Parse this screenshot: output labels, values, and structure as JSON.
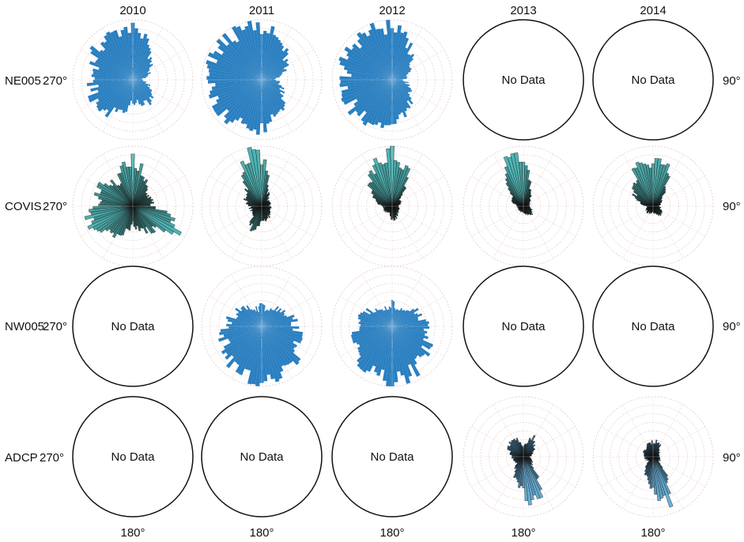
{
  "figure": {
    "years": [
      "2010",
      "2011",
      "2012",
      "2013",
      "2014"
    ],
    "rows": [
      {
        "label": "NE005",
        "west_label": "270°",
        "east_label": "90°"
      },
      {
        "label": "COVIS",
        "west_label": "270°",
        "east_label": "90°"
      },
      {
        "label": "NW005",
        "west_label": "270°",
        "east_label": "90°"
      },
      {
        "label": "ADCP",
        "west_label": "270°",
        "east_label": "90°"
      }
    ],
    "bottom_labels": [
      "180°",
      "180°",
      "180°",
      "180°",
      "180°"
    ],
    "no_data_text": "No Data",
    "colors": {
      "ne005": "#2a7fc0",
      "nw005": "#2a7fc0",
      "covis_tip": "#4fb3b3",
      "covis_base": "#111111",
      "adcp_tip": "#6ab0d6",
      "adcp_base": "#102030",
      "grid": "#d9b8b8",
      "circle": "#111111"
    }
  },
  "chart_data": {
    "type": "polar-rose",
    "title": "",
    "grid": true,
    "direction_labels": [
      "90°",
      "180°",
      "270°"
    ],
    "panels": [
      {
        "row": "NE005",
        "year": "2010",
        "has_data": true,
        "directions_deg": [
          0,
          45,
          90,
          135,
          180,
          225,
          270,
          315
        ],
        "relative_length": [
          0.95,
          0.45,
          0.15,
          0.5,
          0.4,
          0.8,
          0.7,
          0.85
        ]
      },
      {
        "row": "NE005",
        "year": "2011",
        "has_data": true,
        "directions_deg": [
          0,
          45,
          90,
          135,
          180,
          225,
          270,
          315
        ],
        "relative_length": [
          0.95,
          0.6,
          0.25,
          0.55,
          0.85,
          0.9,
          0.9,
          0.95
        ]
      },
      {
        "row": "NE005",
        "year": "2012",
        "has_data": true,
        "directions_deg": [
          0,
          45,
          90,
          135,
          180,
          225,
          270,
          315
        ],
        "relative_length": [
          0.95,
          0.5,
          0.2,
          0.45,
          0.85,
          0.85,
          0.85,
          0.95
        ]
      },
      {
        "row": "NE005",
        "year": "2013",
        "has_data": false
      },
      {
        "row": "NE005",
        "year": "2014",
        "has_data": false
      },
      {
        "row": "COVIS",
        "year": "2010",
        "has_data": true,
        "directions_deg": [
          0,
          45,
          90,
          120,
          135,
          160,
          180,
          200,
          225,
          250,
          280,
          300,
          330
        ],
        "relative_length": [
          0.85,
          0.3,
          0.35,
          0.95,
          0.55,
          0.45,
          0.3,
          0.5,
          0.65,
          0.85,
          0.6,
          0.7,
          0.5
        ]
      },
      {
        "row": "COVIS",
        "year": "2011",
        "has_data": true,
        "directions_deg": [
          0,
          20,
          45,
          90,
          135,
          180,
          205,
          225,
          270,
          320,
          345
        ],
        "relative_length": [
          0.85,
          0.3,
          0.15,
          0.15,
          0.2,
          0.3,
          0.45,
          0.2,
          0.2,
          0.45,
          0.95
        ]
      },
      {
        "row": "COVIS",
        "year": "2012",
        "has_data": true,
        "directions_deg": [
          0,
          20,
          45,
          90,
          135,
          180,
          200,
          225,
          270,
          315,
          340
        ],
        "relative_length": [
          0.95,
          0.75,
          0.2,
          0.1,
          0.15,
          0.25,
          0.1,
          0.15,
          0.15,
          0.6,
          0.8
        ]
      },
      {
        "row": "COVIS",
        "year": "2013",
        "has_data": true,
        "directions_deg": [
          0,
          20,
          45,
          90,
          135,
          180,
          225,
          270,
          315,
          345
        ],
        "relative_length": [
          0.85,
          0.35,
          0.15,
          0.1,
          0.2,
          0.1,
          0.1,
          0.1,
          0.3,
          0.95
        ]
      },
      {
        "row": "COVIS",
        "year": "2014",
        "has_data": true,
        "directions_deg": [
          0,
          15,
          45,
          90,
          135,
          180,
          225,
          270,
          315,
          345
        ],
        "relative_length": [
          0.7,
          0.85,
          0.2,
          0.1,
          0.2,
          0.1,
          0.15,
          0.1,
          0.5,
          0.8
        ]
      },
      {
        "row": "NW005",
        "year": "2010",
        "has_data": false
      },
      {
        "row": "NW005",
        "year": "2011",
        "has_data": true,
        "directions_deg": [
          0,
          10,
          170,
          180,
          190,
          350
        ],
        "relative_length": [
          0.45,
          0.3,
          0.95,
          1.0,
          0.95,
          0.3
        ]
      },
      {
        "row": "NW005",
        "year": "2012",
        "has_data": true,
        "directions_deg": [
          0,
          10,
          170,
          180,
          190,
          350
        ],
        "relative_length": [
          0.45,
          0.3,
          0.95,
          1.0,
          0.95,
          0.3
        ]
      },
      {
        "row": "NW005",
        "year": "2013",
        "has_data": false
      },
      {
        "row": "NW005",
        "year": "2014",
        "has_data": false
      },
      {
        "row": "ADCP",
        "year": "2010",
        "has_data": false
      },
      {
        "row": "ADCP",
        "year": "2011",
        "has_data": false
      },
      {
        "row": "ADCP",
        "year": "2012",
        "has_data": false
      },
      {
        "row": "ADCP",
        "year": "2013",
        "has_data": true,
        "directions_deg": [
          0,
          30,
          45,
          90,
          135,
          160,
          170,
          180,
          225,
          270,
          315,
          330
        ],
        "relative_length": [
          0.15,
          0.4,
          0.25,
          0.1,
          0.2,
          0.8,
          0.9,
          0.6,
          0.15,
          0.2,
          0.35,
          0.4
        ]
      },
      {
        "row": "ADCP",
        "year": "2014",
        "has_data": true,
        "directions_deg": [
          0,
          20,
          45,
          90,
          135,
          160,
          170,
          180,
          225,
          270,
          315,
          340
        ],
        "relative_length": [
          0.25,
          0.3,
          0.15,
          0.1,
          0.15,
          0.85,
          0.8,
          0.6,
          0.1,
          0.15,
          0.2,
          0.25
        ]
      }
    ]
  }
}
